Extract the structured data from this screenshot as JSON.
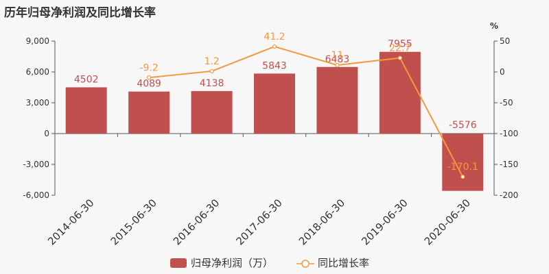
{
  "chart_data": {
    "type": "bar",
    "title": "历年归母净利润及同比增长率",
    "categories": [
      "2014-06-30",
      "2015-06-30",
      "2016-06-30",
      "2017-06-30",
      "2018-06-30",
      "2019-06-30",
      "2020-06-30"
    ],
    "series": [
      {
        "name": "归母净利润（万）",
        "type": "bar",
        "axis": "left",
        "values": [
          4502,
          4089,
          4138,
          5843,
          6483,
          7955,
          -5576
        ],
        "labels": [
          "4502",
          "4089",
          "4138",
          "5843",
          "6483",
          "7955",
          "-5576"
        ],
        "color": "#c0504d"
      },
      {
        "name": "同比增长率",
        "type": "line",
        "axis": "right",
        "values": [
          null,
          -9.2,
          1.2,
          41.2,
          11,
          22.7,
          -170.1
        ],
        "labels": [
          "",
          "-9.2",
          "1.2",
          "41.2",
          "11",
          "22.7",
          "-170.1"
        ],
        "color": "#f5993d"
      }
    ],
    "y_left": {
      "ylim": [
        -6000,
        9000
      ],
      "ticks": [
        -6000,
        -3000,
        0,
        3000,
        6000,
        9000
      ],
      "tick_labels": [
        "-6,000",
        "-3,000",
        "0",
        "3,000",
        "6,000",
        "9,000"
      ]
    },
    "y_right": {
      "unit": "%",
      "ylim": [
        -200,
        50
      ],
      "ticks": [
        -200,
        -150,
        -100,
        -50,
        0,
        50
      ],
      "tick_labels": [
        "-200",
        "-150",
        "-100",
        "-50",
        "0",
        "50"
      ]
    },
    "legend": {
      "position": "bottom-center"
    },
    "grid": false
  }
}
